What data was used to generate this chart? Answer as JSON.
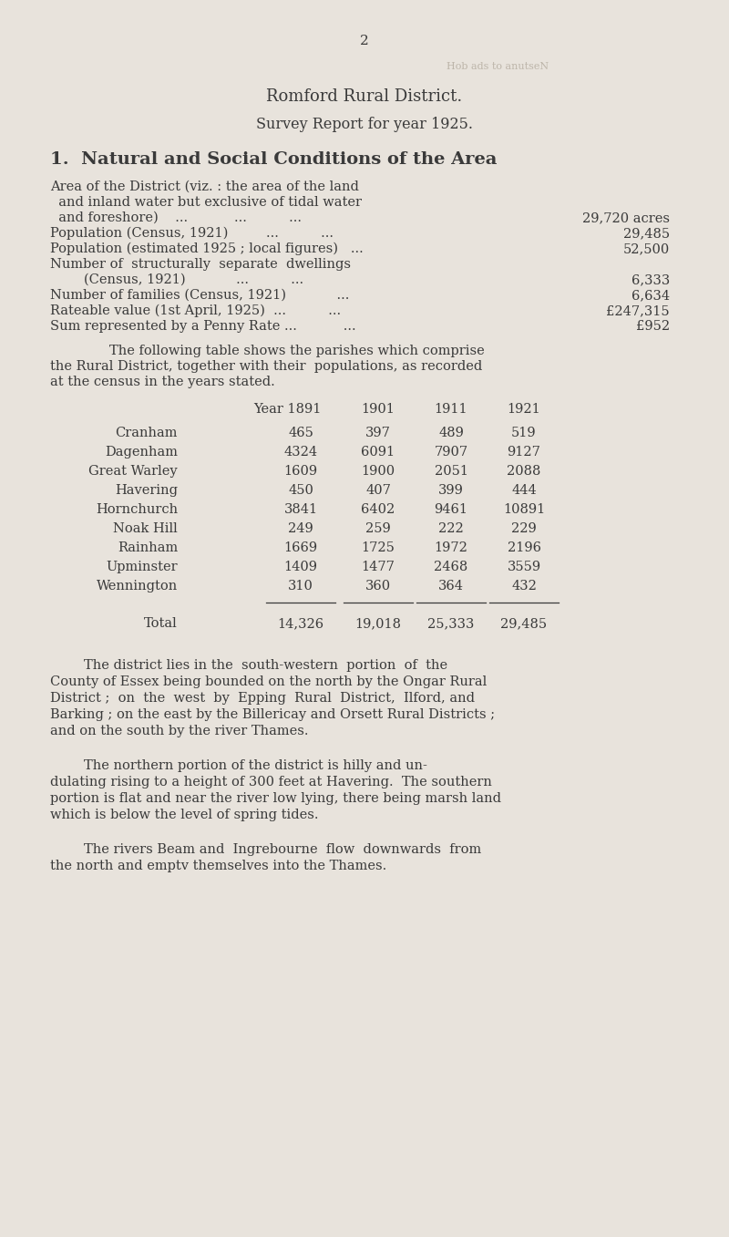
{
  "bg_color": "#e8e3dc",
  "text_color": "#3a3a3a",
  "page_number": "2",
  "watermark": "Hob ads to anutseN",
  "title1": "Romford Rural District.",
  "title2": "Survey Report for year 1925.",
  "section_title": "1.  Natural and Social Conditions of the Area",
  "table_headers": [
    "Year 1891",
    "1901",
    "1911",
    "1921"
  ],
  "table_rows": [
    [
      "Cranham",
      "465",
      "397",
      "489",
      "519"
    ],
    [
      "Dagenham",
      "4324",
      "6091",
      "7907",
      "9127"
    ],
    [
      "Great Warley",
      "1609",
      "1900",
      "2051",
      "2088"
    ],
    [
      "Havering",
      "450",
      "407",
      "399",
      "444"
    ],
    [
      "Hornchurch",
      "3841",
      "6402",
      "9461",
      "10891"
    ],
    [
      "Noak Hill",
      "249",
      "259",
      "222",
      "229"
    ],
    [
      "Rainham",
      "1669",
      "1725",
      "1972",
      "2196"
    ],
    [
      "Upminster",
      "1409",
      "1477",
      "2468",
      "3559"
    ],
    [
      "Wennington",
      "310",
      "360",
      "364",
      "432"
    ]
  ],
  "table_total": [
    "Total",
    "14,326",
    "19,018",
    "25,333",
    "29,485"
  ]
}
